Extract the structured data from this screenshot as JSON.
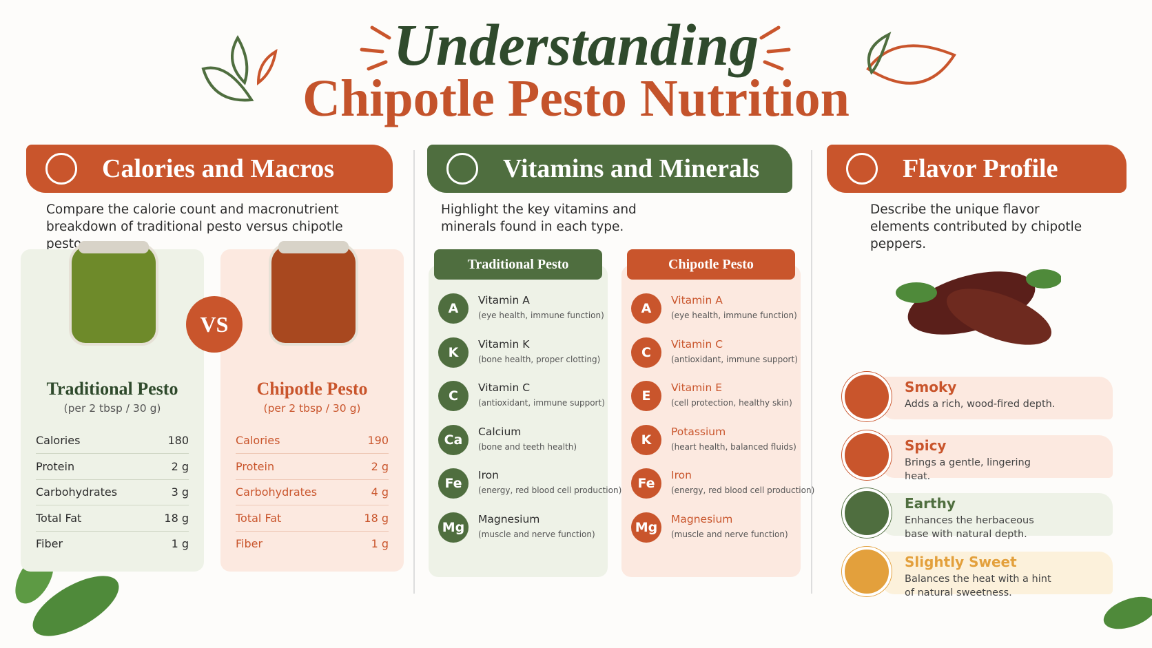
{
  "header": {
    "script_title": "Understanding",
    "title": "Chipotle Pesto Nutrition"
  },
  "macros": {
    "title": "Calories and Macros",
    "description": "Compare the calorie count and macronutrient breakdown of traditional pesto versus chipotle pesto.",
    "vs": "VS",
    "products": [
      {
        "name": "Traditional Pesto",
        "serving": "(per 2 tbsp / 30 g)",
        "rows": [
          [
            "Calories",
            "180"
          ],
          [
            "Protein",
            "2 g"
          ],
          [
            "Carbohydrates",
            "3 g"
          ],
          [
            "Total Fat",
            "18 g"
          ],
          [
            "Fiber",
            "1 g"
          ]
        ]
      },
      {
        "name": "Chipotle Pesto",
        "serving": "(per 2 tbsp / 30 g)",
        "rows": [
          [
            "Calories",
            "190"
          ],
          [
            "Protein",
            "2 g"
          ],
          [
            "Carbohydrates",
            "4 g"
          ],
          [
            "Total Fat",
            "18 g"
          ],
          [
            "Fiber",
            "1 g"
          ]
        ]
      }
    ]
  },
  "vitamins": {
    "title": "Vitamins and Minerals",
    "description": "Highlight the key vitamins and minerals found in each type.",
    "columns": [
      {
        "name": "Traditional Pesto",
        "items": [
          {
            "symbol": "A",
            "name": "Vitamin A",
            "note": "(eye health, immune function)"
          },
          {
            "symbol": "K",
            "name": "Vitamin K",
            "note": "(bone health, proper clotting)"
          },
          {
            "symbol": "C",
            "name": "Vitamin C",
            "note": "(antioxidant, immune support)"
          },
          {
            "symbol": "Ca",
            "name": "Calcium",
            "note": "(bone and teeth health)"
          },
          {
            "symbol": "Fe",
            "name": "Iron",
            "note": "(energy, red blood cell production)"
          },
          {
            "symbol": "Mg",
            "name": "Magnesium",
            "note": "(muscle and nerve function)"
          }
        ]
      },
      {
        "name": "Chipotle Pesto",
        "items": [
          {
            "symbol": "A",
            "name": "Vitamin A",
            "note": "(eye health, immune function)"
          },
          {
            "symbol": "C",
            "name": "Vitamin C",
            "note": "(antioxidant, immune support)"
          },
          {
            "symbol": "E",
            "name": "Vitamin E",
            "note": "(cell protection, healthy skin)"
          },
          {
            "symbol": "K",
            "name": "Potassium",
            "note": "(heart health, balanced fluids)"
          },
          {
            "symbol": "Fe",
            "name": "Iron",
            "note": "(energy, red blood cell production)"
          },
          {
            "symbol": "Mg",
            "name": "Magnesium",
            "note": "(muscle and nerve function)"
          }
        ]
      }
    ]
  },
  "flavor": {
    "title": "Flavor Profile",
    "description": "Describe the unique flavor elements contributed by chipotle peppers.",
    "items": [
      {
        "name": "Smoky",
        "description": "Adds a rich, wood-fired depth."
      },
      {
        "name": "Spicy",
        "description": "Brings a gentle, lingering heat."
      },
      {
        "name": "Earthy",
        "description": "Enhances the herbaceous base with natural depth."
      },
      {
        "name": "Slightly Sweet",
        "description": "Balances the heat with a hint of natural sweetness."
      }
    ]
  }
}
